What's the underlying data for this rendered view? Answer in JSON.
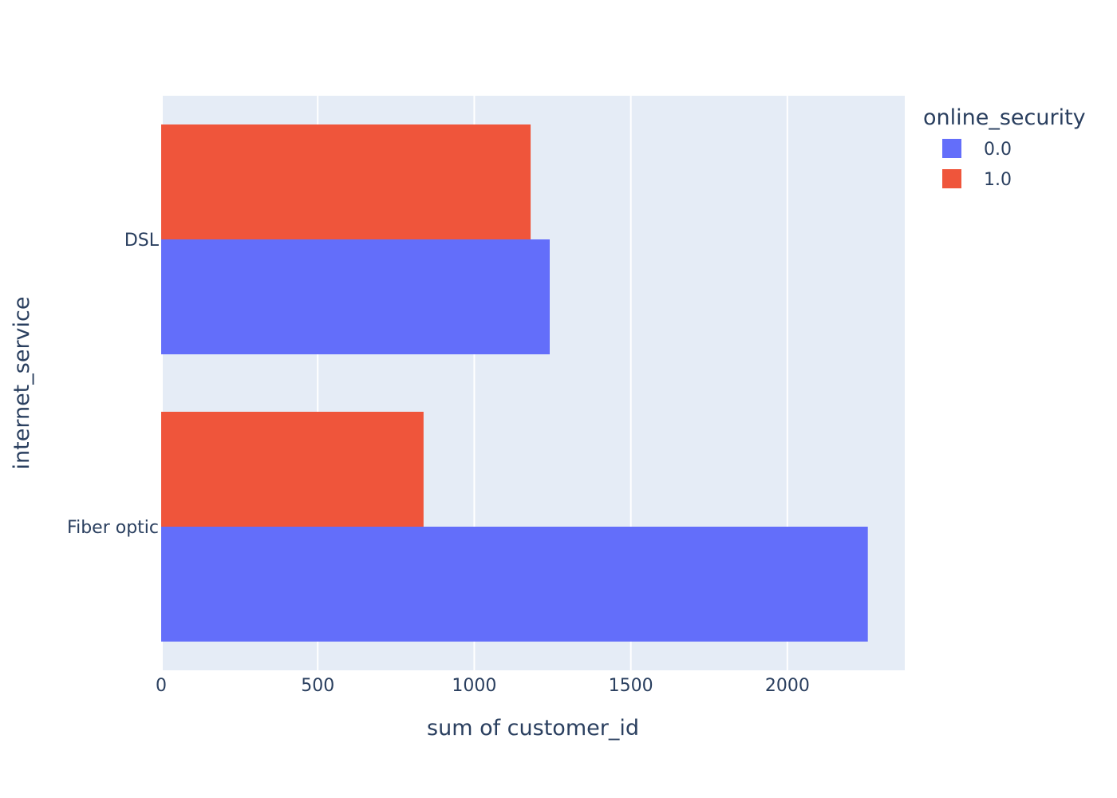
{
  "chart_data": {
    "type": "bar",
    "orientation": "horizontal",
    "barmode": "group",
    "title": "",
    "xlabel": "sum of customer_id",
    "ylabel": "internet_service",
    "categories": [
      "DSL",
      "Fiber optic"
    ],
    "series": [
      {
        "name": "0.0",
        "color": "#636efa",
        "values": [
          1241,
          2257
        ]
      },
      {
        "name": "1.0",
        "color": "#ef553b",
        "values": [
          1180,
          838
        ]
      }
    ],
    "xlim": [
      0,
      2375
    ],
    "xticks": [
      0,
      500,
      1000,
      1500,
      2000
    ],
    "xtick_labels": [
      "0",
      "500",
      "1000",
      "1500",
      "2000"
    ],
    "grid": true,
    "legend": {
      "title": "online_security",
      "position": "right-top"
    },
    "colors": {
      "plot_background": "#e5ecf6",
      "gridline": "#ffffff",
      "text": "#2a3f5f"
    }
  }
}
